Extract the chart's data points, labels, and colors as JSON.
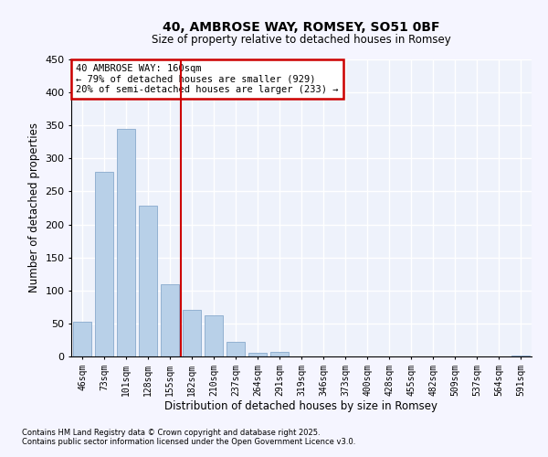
{
  "title": "40, AMBROSE WAY, ROMSEY, SO51 0BF",
  "subtitle": "Size of property relative to detached houses in Romsey",
  "xlabel": "Distribution of detached houses by size in Romsey",
  "ylabel": "Number of detached properties",
  "bar_color": "#b8d0e8",
  "bar_edge_color": "#88aacc",
  "background_color": "#eef2fb",
  "fig_background_color": "#f5f5ff",
  "grid_color": "#ffffff",
  "categories": [
    "46sqm",
    "73sqm",
    "101sqm",
    "128sqm",
    "155sqm",
    "182sqm",
    "210sqm",
    "237sqm",
    "264sqm",
    "291sqm",
    "319sqm",
    "346sqm",
    "373sqm",
    "400sqm",
    "428sqm",
    "455sqm",
    "482sqm",
    "509sqm",
    "537sqm",
    "564sqm",
    "591sqm"
  ],
  "values": [
    52,
    280,
    345,
    229,
    110,
    70,
    63,
    22,
    5,
    7,
    0,
    0,
    0,
    0,
    0,
    0,
    0,
    0,
    0,
    0,
    1
  ],
  "ylim": [
    0,
    450
  ],
  "yticks": [
    0,
    50,
    100,
    150,
    200,
    250,
    300,
    350,
    400,
    450
  ],
  "vline_x": 4.5,
  "vline_color": "#cc0000",
  "annotation_title": "40 AMBROSE WAY: 160sqm",
  "annotation_line1": "← 79% of detached houses are smaller (929)",
  "annotation_line2": "20% of semi-detached houses are larger (233) →",
  "annotation_box_color": "#cc0000",
  "footnote1": "Contains HM Land Registry data © Crown copyright and database right 2025.",
  "footnote2": "Contains public sector information licensed under the Open Government Licence v3.0."
}
